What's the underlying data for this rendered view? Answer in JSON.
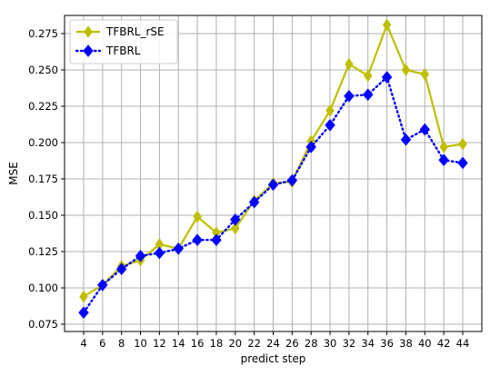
{
  "chart_data": {
    "type": "line",
    "title": "",
    "xlabel": "predict step",
    "ylabel": "MSE",
    "categories": [
      "4",
      "6",
      "8",
      "10",
      "12",
      "14",
      "16",
      "18",
      "20",
      "22",
      "24",
      "26",
      "28",
      "30",
      "32",
      "34",
      "36",
      "38",
      "40",
      "42",
      "44"
    ],
    "ylim": [
      0.07,
      0.2875
    ],
    "yticks": [
      0.075,
      0.1,
      0.125,
      0.15,
      0.175,
      0.2,
      0.225,
      0.25,
      0.275
    ],
    "ytick_labels": [
      "0.075",
      "0.100",
      "0.125",
      "0.150",
      "0.175",
      "0.200",
      "0.225",
      "0.250",
      "0.275"
    ],
    "grid": true,
    "legend_position": "top-left",
    "series": [
      {
        "name": "TFBRL_rSE",
        "color": "#bfbf00",
        "line_style": "solid",
        "marker": "thin-diamond",
        "values": [
          0.094,
          0.102,
          0.115,
          0.119,
          0.13,
          0.127,
          0.149,
          0.138,
          0.141,
          0.16,
          0.172,
          0.173,
          0.201,
          0.222,
          0.254,
          0.246,
          0.281,
          0.25,
          0.247,
          0.197,
          0.199
        ]
      },
      {
        "name": "TFBRL",
        "color": "#0000ff",
        "line_style": "dotted",
        "marker": "diamond",
        "values": [
          0.083,
          0.102,
          0.113,
          0.122,
          0.124,
          0.127,
          0.133,
          0.133,
          0.147,
          0.159,
          0.171,
          0.174,
          0.197,
          0.212,
          0.232,
          0.233,
          0.245,
          0.202,
          0.209,
          0.188,
          0.186
        ]
      }
    ]
  }
}
